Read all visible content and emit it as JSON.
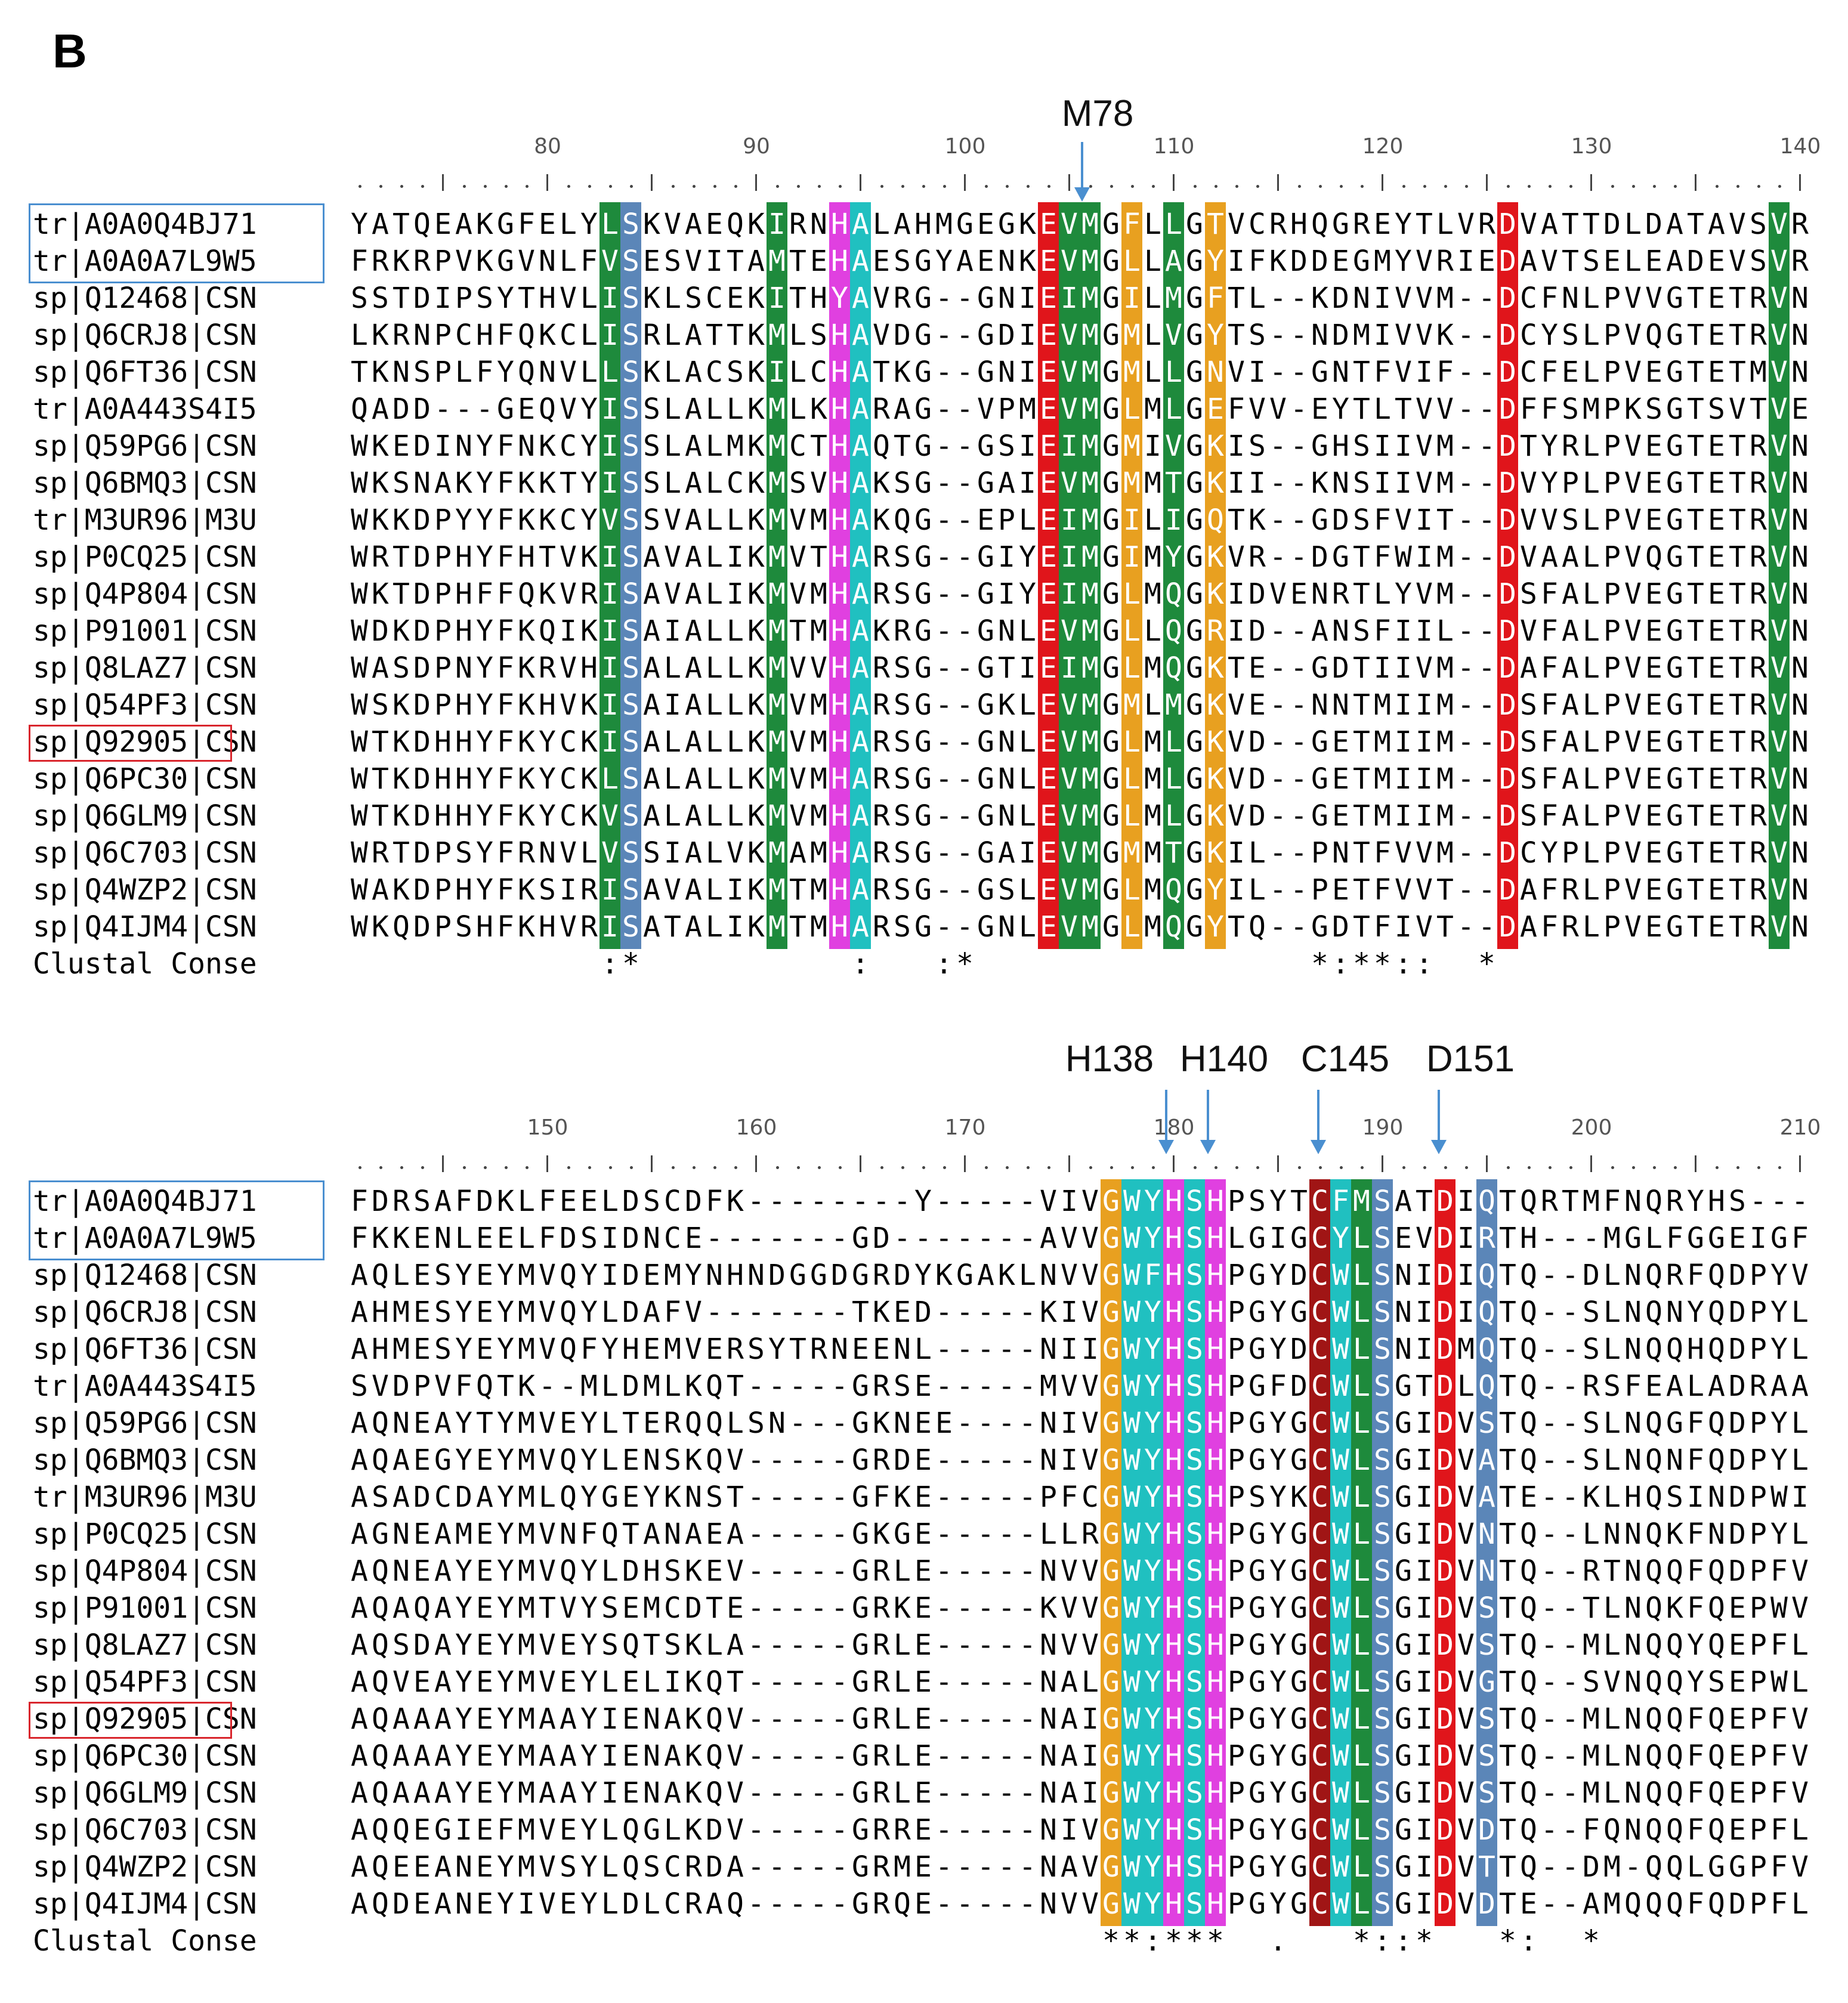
{
  "panel_label": "B",
  "colors": {
    "green": "#1e8a3c",
    "steelblue": "#5b86b8",
    "magenta": "#e040e0",
    "teal": "#20c0c0",
    "red": "#e0151b",
    "orange": "#e8a020",
    "darkred": "#a01515",
    "box_blue": "#4a8fd0",
    "box_red": "#d9262d"
  },
  "block1": {
    "ruler_numbers": [
      "80",
      "90",
      "100",
      "110",
      "120",
      "130",
      "140"
    ],
    "markers": [
      {
        "label": "M78"
      }
    ],
    "rows": [
      {
        "label": "tr|A0A0Q4BJ71",
        "seq": "YATQEAKGFELYLSKVAEQKIRNHALAHMGEGKEVMGFLLGTVCRHQGREYTLVRDVATTDLDATAVSVR"
      },
      {
        "label": "tr|A0A0A7L9W5",
        "seq": "FRKRPVKGVNLFVSESVITAMTEHAESGYAENKEVMGLLAGYIFKDDEGMYVRIEDAVTSELEADEVSVR"
      },
      {
        "label": "sp|Q12468|CSN",
        "seq": "SSTDIPSYTHVLISKLSCEKITHYAVRG--GNIEIMGILMGFTL--KDNIVVM--DCFNLPVVGTETRVN"
      },
      {
        "label": "sp|Q6CRJ8|CSN",
        "seq": "LKRNPCHFQKCLISRLATTKMLSHAVDG--GDIEVMGMLVGYTS--NDMIVVK--DCYSLPVQGTETRVN"
      },
      {
        "label": "sp|Q6FT36|CSN",
        "seq": "TKNSPLFYQNVLLSKLACSKILCHATKG--GNIEVMGMLLGNVI--GNTFVIF--DCFELPVEGTETMVN"
      },
      {
        "label": "tr|A0A443S4I5",
        "seq": "QADD---GEQVYISSLALLKMLKHARAG--VPMEVMGLMLGEFVV-EYTLTVV--DFFSMPKSGTSVTVE"
      },
      {
        "label": "sp|Q59PG6|CSN",
        "seq": "WKEDINYFNKCYISSLALMKMCTHAQTG--GSIEIMGMIVGKIS--GHSIIVM--DTYRLPVEGTETRVN"
      },
      {
        "label": "sp|Q6BMQ3|CSN",
        "seq": "WKSNAKYFKKTYISSLALCKMSVHAKSG--GAIEVMGMMTGKII--KNSIIVM--DVYPLPVEGTETRVN"
      },
      {
        "label": "tr|M3UR96|M3U",
        "seq": "WKKDPYYFKKCYVSSVALLKMVMHAKQG--EPLEIMGILIGQTK--GDSFVIT--DVVSLPVEGTETRVN"
      },
      {
        "label": "sp|P0CQ25|CSN",
        "seq": "WRTDPHYFHTVKISAVALIKMVTHARSG--GIYEIMGIMYGKVR--DGTFWIM--DVAALPVQGTETRVN"
      },
      {
        "label": "sp|Q4P804|CSN",
        "seq": "WKTDPHFFQKVRISAVALIKMVMHARSG--GIYEIMGLMQGKIDVENRTLYVM--DSFALPVEGTETRVN"
      },
      {
        "label": "sp|P91001|CSN",
        "seq": "WDKDPHYFKQIKISAIALLKMTMHAKRG--GNLEVMGLLQGRID--ANSFIIL--DVFALPVEGTETRVN"
      },
      {
        "label": "sp|Q8LAZ7|CSN",
        "seq": "WASDPNYFKRVHISALALLKMVVHARSG--GTIEIMGLMQGKTE--GDTIIVM--DAFALPVEGTETRVN"
      },
      {
        "label": "sp|Q54PF3|CSN",
        "seq": "WSKDPHYFKHVKISAIALLKMVMHARSG--GKLEVMGMLMGKVE--NNTMIIM--DSFALPVEGTETRVN"
      },
      {
        "label": "sp|Q92905|CSN",
        "seq": "WTKDHHYFKYCKISALALLKMVMHARSG--GNLEVMGLMLGKVD--GETMIIM--DSFALPVEGTETRVN"
      },
      {
        "label": "sp|Q6PC30|CSN",
        "seq": "WTKDHHYFKYCKLSALALLKMVMHARSG--GNLEVMGLMLGKVD--GETMIIM--DSFALPVEGTETRVN"
      },
      {
        "label": "sp|Q6GLM9|CSN",
        "seq": "WTKDHHYFKYCKVSALALLKMVMHARSG--GNLEVMGLMLGKVD--GETMIIM--DSFALPVEGTETRVN"
      },
      {
        "label": "sp|Q6C703|CSN",
        "seq": "WRTDPSYFRNVLVSSIALVKMAMHARSG--GAIEVMGMMTGKIL--PNTFVVM--DCYPLPVEGTETRVN"
      },
      {
        "label": "sp|Q4WZP2|CSN",
        "seq": "WAKDPHYFKSIRISAVALIKMTMHARSG--GSLEVMGLMQGYIL--PETFVVT--DAFRLPVEGTETRVN"
      },
      {
        "label": "sp|Q4IJM4|CSN",
        "seq": "WKQDPSHFKHVRISATALIKMTMHARSG--GNLEVMGLMQGYTQ--GDTFIVT--DAFRLPVEGTETRVN"
      }
    ],
    "consensus_label": "Clustal Conse",
    "consensus": "            :*          :   :*                *:**::  *                *          .  .*  "
  },
  "block2": {
    "ruler_numbers": [
      "150",
      "160",
      "170",
      "180",
      "190",
      "200",
      "210"
    ],
    "markers": [
      {
        "label": "H138"
      },
      {
        "label": "H140"
      },
      {
        "label": "C145"
      },
      {
        "label": "D151"
      }
    ],
    "rows": [
      {
        "label": "tr|A0A0Q4BJ71",
        "seq": "FDRSAFDKLFEELDSCDFK--------Y-----VIVGWYHSHPSYTCFMSATDIQTQRTMFNQRYHS---"
      },
      {
        "label": "tr|A0A0A7L9W5",
        "seq": "FKKENLEELFDSIDNCE-------GD-------AVVGWYHSHLGIGCYLSEVDIRTH---MGLFGGEIGF"
      },
      {
        "label": "sp|Q12468|CSN",
        "seq": "AQLESYEYMVQYIDEMYNHNDGGDGRDYKGAKLNVVGWFHSHPGYDCWLSNIDIQTQ--DLNQRFQDPYV"
      },
      {
        "label": "sp|Q6CRJ8|CSN",
        "seq": "AHMESYEYMVQYLDAFV-------TKED-----KIVGWYHSHPGYGCWLSNIDIQTQ--SLNQNYQDPYL"
      },
      {
        "label": "sp|Q6FT36|CSN",
        "seq": "AHMESYEYMVQFYHEMVERSYTRNEENL-----NIIGWYHSHPGYDCWLSNIDMQTQ--SLNQQHQDPYL"
      },
      {
        "label": "tr|A0A443S4I5",
        "seq": "SVDPVFQTK--MLDMLKQT-----GRSE-----MVVGWYHSHPGFDCWLSGTDLQTQ--RSFEALADRAA"
      },
      {
        "label": "sp|Q59PG6|CSN",
        "seq": "AQNEAYTYMVEYLTERQQLSN---GKNEE----NIVGWYHSHPGYGCWLSGIDVSTQ--SLNQGFQDPYL"
      },
      {
        "label": "sp|Q6BMQ3|CSN",
        "seq": "AQAEGYEYMVQYLENSKQV-----GRDE-----NIVGWYHSHPGYGCWLSGIDVATQ--SLNQNFQDPYL"
      },
      {
        "label": "tr|M3UR96|M3U",
        "seq": "ASADCDAYMLQYGEYKNST-----GFKE-----PFCGWYHSHPSYKCWLSGIDVATE--KLHQSINDPWI"
      },
      {
        "label": "sp|P0CQ25|CSN",
        "seq": "AGNEAMEYMVNFQTANAEA-----GKGE-----LLRGWYHSHPGYGCWLSGIDVNTQ--LNNQKFNDPYL"
      },
      {
        "label": "sp|Q4P804|CSN",
        "seq": "AQNEAYEYMVQYLDHSKEV-----GRLE-----NVVGWYHSHPGYGCWLSGIDVNTQ--RTNQQFQDPFV"
      },
      {
        "label": "sp|P91001|CSN",
        "seq": "AQAQAYEYMTVYSEMCDTE-----GRKE-----KVVGWYHSHPGYGCWLSGIDVSTQ--TLNQKFQEPWV"
      },
      {
        "label": "sp|Q8LAZ7|CSN",
        "seq": "AQSDAYEYMVEYSQTSKLA-----GRLE-----NVVGWYHSHPGYGCWLSGIDVSTQ--MLNQQYQEPFL"
      },
      {
        "label": "sp|Q54PF3|CSN",
        "seq": "AQVEAYEYMVEYLELIKQT-----GRLE-----NALGWYHSHPGYGCWLSGIDVGTQ--SVNQQYSEPWL"
      },
      {
        "label": "sp|Q92905|CSN",
        "seq": "AQAAAYEYMAAYIENAKQV-----GRLE-----NAIGWYHSHPGYGCWLSGIDVSTQ--MLNQQFQEPFV"
      },
      {
        "label": "sp|Q6PC30|CSN",
        "seq": "AQAAAYEYMAAYIENAKQV-----GRLE-----NAIGWYHSHPGYGCWLSGIDVSTQ--MLNQQFQEPFV"
      },
      {
        "label": "sp|Q6GLM9|CSN",
        "seq": "AQAAAYEYMAAYIENAKQV-----GRLE-----NAIGWYHSHPGYGCWLSGIDVSTQ--MLNQQFQEPFV"
      },
      {
        "label": "sp|Q6C703|CSN",
        "seq": "AQQEGIEFMVEYLQGLKDV-----GRRE-----NIVGWYHSHPGYGCWLSGIDVDTQ--FQNQQFQEPFL"
      },
      {
        "label": "sp|Q4WZP2|CSN",
        "seq": "AQEEANEYMVSYLQSCRDA-----GRME-----NAVGWYHSHPGYGCWLSGIDVTTQ--DM-QQLGGPFV"
      },
      {
        "label": "sp|Q4IJM4|CSN",
        "seq": "AQDEANEYIVEYLDLCRAQ-----GRQE-----NVVGWYHSHPGYGCWLSGIDVDTE--AMQQQFQDPFL"
      }
    ],
    "consensus_label": "Clustal Conse",
    "consensus": "                                    **:***  .   *::*   *:  *           "
  }
}
